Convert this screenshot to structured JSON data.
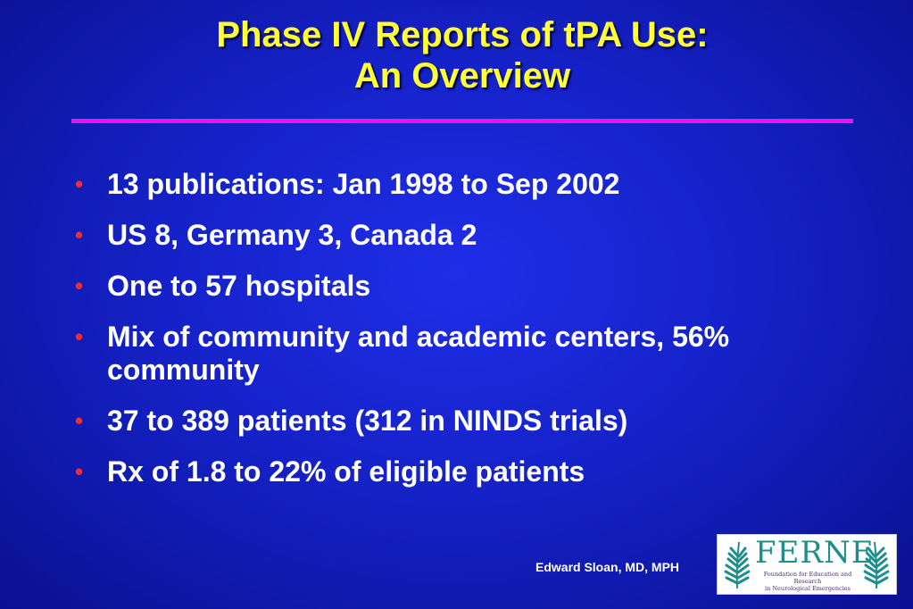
{
  "slide": {
    "title_line1": "Phase IV Reports of tPA Use:",
    "title_line2": "An Overview",
    "bullet_symbol": "•",
    "bullets": [
      "13 publications: Jan 1998 to Sep 2002",
      "US 8, Germany 3, Canada 2",
      "One to 57 hospitals",
      "Mix of community and academic centers, 56% community",
      "37 to 389 patients (312 in NINDS trials)",
      "Rx of 1.8 to 22% of eligible patients"
    ],
    "author": "Edward Sloan, MD, MPH"
  },
  "logo": {
    "name": "FERNE",
    "subtitle_line1": "Foundation for Education and Research",
    "subtitle_line2": "in Neurological Emergencies"
  },
  "colors": {
    "background": "#1522c8",
    "title": "#ffff33",
    "rule": "#e416ee",
    "bullet": "#ff2a2a",
    "text": "#ffffff",
    "logo_teal": "#1e8d8c"
  }
}
